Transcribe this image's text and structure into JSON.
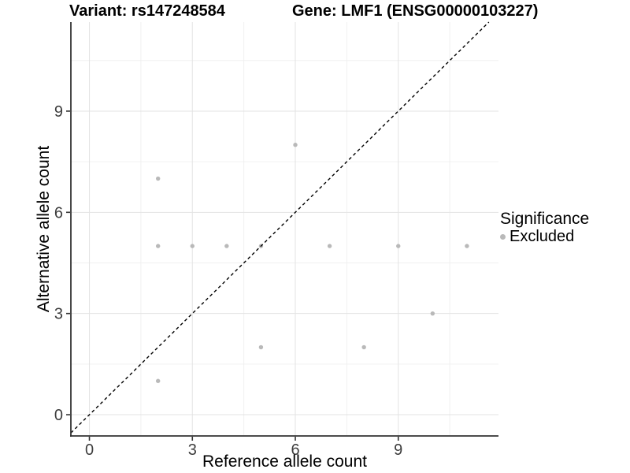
{
  "header": {
    "variant_title": "Variant: rs147248584",
    "gene_title": "Gene: LMF1 (ENSG00000103227)"
  },
  "legend": {
    "title": "Significance",
    "entries": [
      {
        "label": "Excluded",
        "color": "#b9b9b9"
      }
    ]
  },
  "chart_data": {
    "type": "scatter",
    "title": "Variant: rs147248584   Gene: LMF1 (ENSG00000103227)",
    "xlabel": "Reference allele count",
    "ylabel": "Alternative allele count",
    "xlim": [
      -0.54,
      11.92
    ],
    "ylim": [
      -0.63,
      11.64
    ],
    "xticks": [
      0,
      3,
      6,
      9
    ],
    "yticks": [
      0,
      3,
      6,
      9
    ],
    "grid": {
      "on": true,
      "major_x": [
        0,
        3,
        6,
        9
      ],
      "major_y": [
        0,
        3,
        6,
        9
      ],
      "minor_x": [
        1.5,
        4.5,
        7.5,
        10.5
      ],
      "minor_y": [
        1.5,
        4.5,
        7.5,
        10.5
      ]
    },
    "legend_position": "right",
    "series": [
      {
        "name": "Excluded",
        "color": "#b9b9b9",
        "points": [
          [
            2,
            1
          ],
          [
            2,
            5
          ],
          [
            2,
            7
          ],
          [
            3,
            5
          ],
          [
            4,
            5
          ],
          [
            5,
            2
          ],
          [
            5,
            5
          ],
          [
            6,
            8
          ],
          [
            7,
            5
          ],
          [
            8,
            2
          ],
          [
            9,
            5
          ],
          [
            10,
            3
          ],
          [
            11,
            5
          ]
        ]
      }
    ],
    "identity_line": {
      "type": "y=x",
      "style": "dashed",
      "color": "#000000"
    },
    "colors": {
      "point": "#b9b9b9",
      "axis_line": "#333333",
      "tick_label": "#3d3d3d",
      "axis_title": "#000000",
      "grid_major": "#e3e3e3",
      "grid_minor": "#f0f0f0",
      "background": "#ffffff"
    }
  }
}
